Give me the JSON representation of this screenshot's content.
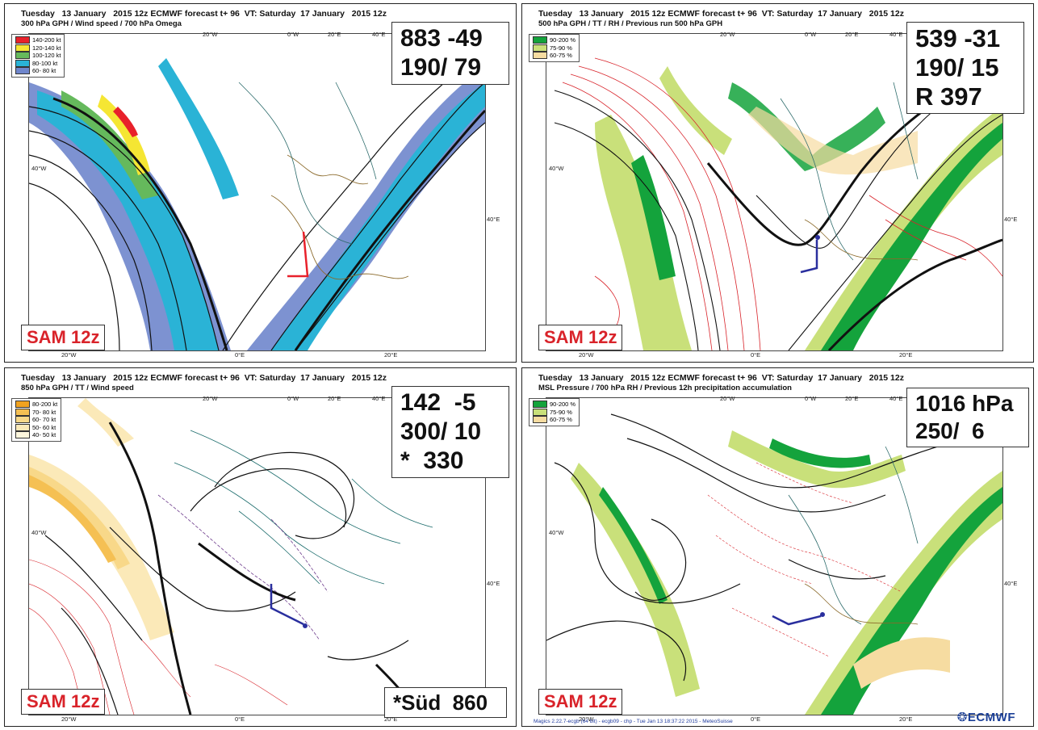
{
  "panels": [
    {
      "header": "Tuesday   13 January   2015 12z ECMWF forecast t+ 96  VT: Saturday  17 January   2015 12z",
      "subheader": "300 hPa GPH / Wind speed / 700 hPa Omega",
      "legend": [
        {
          "label": "140-200 kt",
          "color": "#e8212b"
        },
        {
          "label": "120-140 kt",
          "color": "#f5e633"
        },
        {
          "label": "100-120 kt",
          "color": "#65b95c"
        },
        {
          "label": "80-100 kt",
          "color": "#2ab3d6"
        },
        {
          "label": "60- 80 kt",
          "color": "#6f86cc"
        }
      ],
      "values": [
        "883 -49",
        "190/ 79"
      ],
      "sam": "SAM 12z",
      "lat_label": "40°W",
      "lon_labels": [
        "20°W",
        "0°E",
        "20°E"
      ],
      "top_labels": [
        "20°W",
        "0°W",
        "20°E",
        "40°E"
      ],
      "right_label": "40°E"
    },
    {
      "header": "Tuesday   13 January   2015 12z ECMWF forecast t+ 96  VT: Saturday  17 January   2015 12z",
      "subheader": "500 hPa GPH / TT / RH / Previous run 500 hPa GPH",
      "legend": [
        {
          "label": "90-200 %",
          "color": "#14a33c"
        },
        {
          "label": "75-90 %",
          "color": "#c9e07a"
        },
        {
          "label": "60-75 %",
          "color": "#f6dca1"
        }
      ],
      "values": [
        "539 -31",
        "190/ 15",
        "R 397"
      ],
      "sam": "SAM 12z",
      "lat_label": "40°W",
      "lon_labels": [
        "20°W",
        "0°E",
        "20°E"
      ],
      "top_labels": [
        "20°W",
        "0°W",
        "20°E",
        "40°E"
      ],
      "right_label": "40°E"
    },
    {
      "header": "Tuesday   13 January   2015 12z ECMWF forecast t+ 96  VT: Saturday  17 January   2015 12z",
      "subheader": "850 hPa GPH / TT / Wind speed",
      "legend": [
        {
          "label": "80-200 kt",
          "color": "#f0a21f"
        },
        {
          "label": "70- 80 kt",
          "color": "#f5c053"
        },
        {
          "label": "60- 70 kt",
          "color": "#f8d889"
        },
        {
          "label": "50- 60 kt",
          "color": "#fbe9b8"
        },
        {
          "label": "40- 50 kt",
          "color": "#fdf6dc"
        }
      ],
      "values": [
        "142  -5",
        "300/ 10",
        "*  330"
      ],
      "extra_box": "*Süd  860",
      "sam": "SAM 12z",
      "lat_label": "40°W",
      "lon_labels": [
        "20°W",
        "0°E",
        "20°E"
      ],
      "top_labels": [
        "20°W",
        "0°W",
        "20°E",
        "40°E"
      ],
      "right_label": "40°E"
    },
    {
      "header": "Tuesday   13 January   2015 12z ECMWF forecast t+ 96  VT: Saturday  17 January   2015 12z",
      "subheader": "MSL Pressure / 700 hPa RH / Previous 12h precipitation accumulation",
      "legend": [
        {
          "label": "90-200 %",
          "color": "#14a33c"
        },
        {
          "label": "75-90 %",
          "color": "#c9e07a"
        },
        {
          "label": "60-75 %",
          "color": "#f6dca1"
        }
      ],
      "values": [
        "1016 hPa",
        "250/  6"
      ],
      "sam": "SAM 12z",
      "lat_label": "40°W",
      "lon_labels": [
        "20°W",
        "0°E",
        "20°E"
      ],
      "top_labels": [
        "20°W",
        "0°W",
        "20°E",
        "40°E"
      ],
      "right_label": "40°E",
      "footer": "Magics 2.22.7-ecgb (64 bit) - ecgb09 - chp - Tue Jan 13 18:37:22 2015 - MeteoSuisse",
      "logo": "ECMWF"
    }
  ]
}
